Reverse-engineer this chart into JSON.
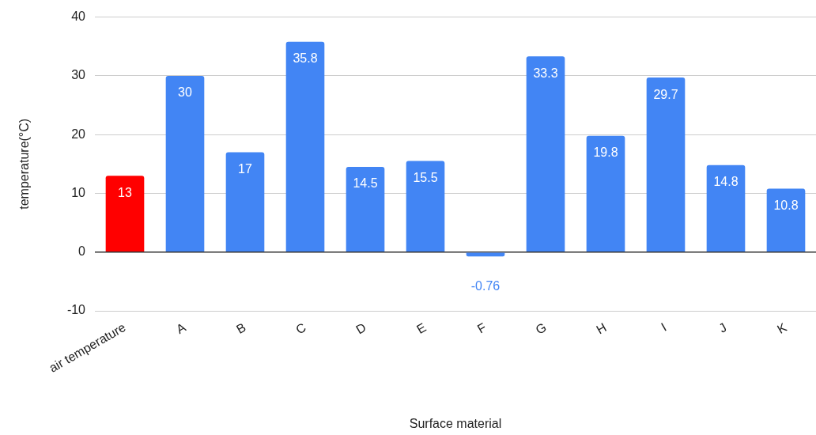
{
  "chart_data": {
    "type": "bar",
    "xlabel": "Surface material",
    "ylabel": "temperature(°C)",
    "categories": [
      "air temperature",
      "A",
      "B",
      "C",
      "D",
      "E",
      "F",
      "G",
      "H",
      "I",
      "J",
      "K"
    ],
    "values": [
      13,
      30,
      17,
      35.8,
      14.5,
      15.5,
      -0.76,
      33.3,
      19.8,
      29.7,
      14.8,
      10.8
    ],
    "colors": [
      "#ff0000",
      "#4285f4",
      "#4285f4",
      "#4285f4",
      "#4285f4",
      "#4285f4",
      "#4285f4",
      "#4285f4",
      "#4285f4",
      "#4285f4",
      "#4285f4",
      "#4285f4"
    ],
    "ylim": [
      -10,
      40
    ],
    "yticks": [
      -10,
      0,
      10,
      20,
      30,
      40
    ],
    "grid": "y",
    "data_labels": true
  }
}
